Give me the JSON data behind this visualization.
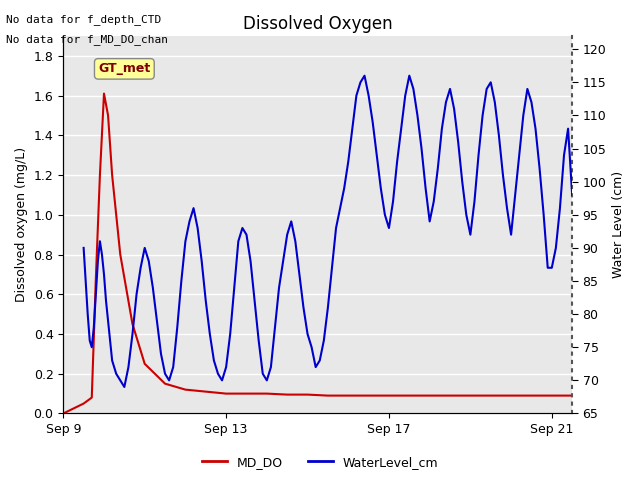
{
  "title": "Dissolved Oxygen",
  "ylabel_left": "Dissolved oxygen (mg/L)",
  "ylabel_right": "Water Level (cm)",
  "xlim_days": [
    0,
    12.5
  ],
  "ylim_left": [
    0.0,
    1.9
  ],
  "ylim_right": [
    65,
    122
  ],
  "xtick_labels": [
    "Sep 9",
    "Sep 13",
    "Sep 17",
    "Sep 21"
  ],
  "xtick_positions": [
    0,
    4,
    8,
    12
  ],
  "yticks_left": [
    0.0,
    0.2,
    0.4,
    0.6,
    0.8,
    1.0,
    1.2,
    1.4,
    1.6,
    1.8
  ],
  "yticks_right": [
    65,
    70,
    75,
    80,
    85,
    90,
    95,
    100,
    105,
    110,
    115,
    120
  ],
  "annotation_lines": [
    "No data for f_depth_CTD",
    "No data for f_MD_DO_chan"
  ],
  "legend_box_label": "GT_met",
  "legend_box_color": "#ffff99",
  "legend_box_text_color": "#800000",
  "bg_color": "#e8e8e8",
  "grid_color": "#ffffff",
  "right_axis_dot_color": "#555555",
  "md_do_color": "#cc0000",
  "water_level_color": "#0000cc",
  "legend_items": [
    {
      "label": "MD_DO",
      "color": "#cc0000"
    },
    {
      "label": "WaterLevel_cm",
      "color": "#0000cc"
    }
  ],
  "md_do_data": {
    "x": [
      0,
      0.5,
      0.7,
      0.8,
      0.9,
      1.0,
      1.1,
      1.2,
      1.4,
      1.7,
      2.0,
      2.5,
      3.0,
      3.5,
      4.0,
      4.5,
      5.0,
      5.5,
      6.0,
      6.5,
      7.0,
      7.5,
      8.0,
      8.5,
      9.0,
      9.5,
      10.0,
      10.5,
      11.0,
      11.5,
      12.0,
      12.5
    ],
    "y": [
      0.0,
      0.05,
      0.08,
      0.68,
      1.2,
      1.61,
      1.5,
      1.2,
      0.8,
      0.45,
      0.25,
      0.15,
      0.12,
      0.11,
      0.1,
      0.1,
      0.1,
      0.095,
      0.095,
      0.09,
      0.09,
      0.09,
      0.09,
      0.09,
      0.09,
      0.09,
      0.09,
      0.09,
      0.09,
      0.09,
      0.09,
      0.09
    ]
  },
  "water_level_data": {
    "x": [
      0.5,
      0.55,
      0.6,
      0.65,
      0.7,
      0.75,
      0.8,
      0.85,
      0.9,
      0.95,
      1.0,
      1.05,
      1.1,
      1.15,
      1.2,
      1.3,
      1.4,
      1.5,
      1.6,
      1.7,
      1.8,
      1.9,
      2.0,
      2.1,
      2.2,
      2.3,
      2.4,
      2.5,
      2.6,
      2.7,
      2.8,
      2.9,
      3.0,
      3.1,
      3.2,
      3.3,
      3.4,
      3.5,
      3.6,
      3.7,
      3.8,
      3.9,
      4.0,
      4.1,
      4.2,
      4.3,
      4.4,
      4.5,
      4.6,
      4.7,
      4.8,
      4.9,
      5.0,
      5.1,
      5.2,
      5.3,
      5.4,
      5.5,
      5.6,
      5.7,
      5.8,
      5.9,
      6.0,
      6.1,
      6.2,
      6.3,
      6.4,
      6.5,
      6.6,
      6.7,
      6.8,
      6.9,
      7.0,
      7.1,
      7.2,
      7.3,
      7.4,
      7.5,
      7.6,
      7.7,
      7.8,
      7.9,
      8.0,
      8.1,
      8.2,
      8.3,
      8.4,
      8.5,
      8.6,
      8.7,
      8.8,
      8.9,
      9.0,
      9.1,
      9.2,
      9.3,
      9.4,
      9.5,
      9.6,
      9.7,
      9.8,
      9.9,
      10.0,
      10.1,
      10.2,
      10.3,
      10.4,
      10.5,
      10.6,
      10.7,
      10.8,
      10.9,
      11.0,
      11.1,
      11.2,
      11.3,
      11.4,
      11.5,
      11.6,
      11.7,
      11.8,
      11.9,
      12.0,
      12.1,
      12.2,
      12.3,
      12.4,
      12.5
    ],
    "y": [
      90,
      85,
      80,
      76,
      75,
      78,
      83,
      88,
      91,
      89,
      86,
      82,
      79,
      76,
      73,
      71,
      70,
      69,
      72,
      77,
      83,
      87,
      90,
      88,
      84,
      79,
      74,
      71,
      70,
      72,
      78,
      85,
      91,
      94,
      96,
      93,
      88,
      82,
      77,
      73,
      71,
      70,
      72,
      77,
      84,
      91,
      93,
      92,
      88,
      82,
      76,
      71,
      70,
      72,
      78,
      84,
      88,
      92,
      94,
      91,
      86,
      81,
      77,
      75,
      72,
      73,
      76,
      81,
      87,
      93,
      96,
      99,
      103,
      108,
      113,
      115,
      116,
      113,
      109,
      104,
      99,
      95,
      93,
      97,
      103,
      108,
      113,
      116,
      114,
      110,
      105,
      99,
      94,
      97,
      102,
      108,
      112,
      114,
      111,
      106,
      100,
      95,
      92,
      97,
      104,
      110,
      114,
      115,
      112,
      107,
      101,
      96,
      92,
      98,
      104,
      110,
      114,
      112,
      108,
      102,
      95,
      87,
      87,
      90,
      96,
      104,
      108,
      98
    ]
  }
}
